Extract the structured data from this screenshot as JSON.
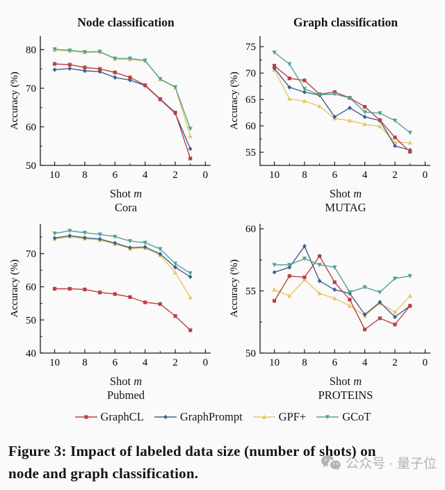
{
  "figure": {
    "column_titles": [
      "Node classification",
      "Graph classification"
    ],
    "shot_label": {
      "prefix": "Shot ",
      "var": "m"
    },
    "legend": [
      {
        "label": "GraphCL",
        "color": "#bc3f44",
        "marker": "square"
      },
      {
        "label": "GraphPrompt",
        "color": "#3f5f8e",
        "marker": "diamond"
      },
      {
        "label": "GPF+",
        "color": "#e8c766",
        "marker": "triangle-up"
      },
      {
        "label": "GCoT",
        "color": "#52a38e",
        "marker": "triangle-down"
      }
    ],
    "caption": {
      "line1": "Figure 3: Impact of labeled data size (number of shots) on",
      "line2": "node and graph classification."
    },
    "watermark": {
      "icon": "wechat-icon",
      "text": "公众号 · 量子位"
    }
  },
  "chart_data": [
    {
      "type": "line",
      "title": "Node classification",
      "subtitle": "Cora",
      "xlabel": "Shot m",
      "ylabel": "Accuracy (%)",
      "x": [
        10,
        9,
        8,
        7,
        6,
        5,
        4,
        3,
        2,
        1
      ],
      "x_ticks": [
        10,
        8,
        6,
        4,
        2,
        0
      ],
      "x_minor": [
        9,
        7,
        5,
        3,
        1
      ],
      "x_reversed": true,
      "ylim": [
        50,
        83.5
      ],
      "y_ticks": [
        50,
        60,
        70,
        80
      ],
      "y_minor": [
        55,
        65,
        75
      ],
      "series": [
        {
          "name": "GraphCL",
          "values": [
            76.3,
            76.1,
            75.4,
            75.0,
            74.1,
            72.8,
            70.8,
            67.2,
            63.7,
            51.8
          ]
        },
        {
          "name": "GraphPrompt",
          "values": [
            74.8,
            75.1,
            74.5,
            74.3,
            72.8,
            72.1,
            70.7,
            67.1,
            63.5,
            54.3
          ]
        },
        {
          "name": "GPF+",
          "values": [
            79.9,
            79.7,
            79.3,
            79.4,
            77.6,
            77.5,
            77.1,
            72.3,
            70.2,
            57.6
          ]
        },
        {
          "name": "GCoT",
          "values": [
            80.1,
            79.8,
            79.4,
            79.5,
            77.7,
            77.7,
            77.2,
            72.4,
            70.3,
            59.5
          ]
        }
      ]
    },
    {
      "type": "line",
      "title": "Graph classification",
      "subtitle": "MUTAG",
      "xlabel": "Shot m",
      "ylabel": "Accuracy (%)",
      "x": [
        10,
        9,
        8,
        7,
        6,
        5,
        4,
        3,
        2,
        1
      ],
      "x_ticks": [
        10,
        8,
        6,
        4,
        2,
        0
      ],
      "x_minor": [
        9,
        7,
        5,
        3,
        1
      ],
      "x_reversed": true,
      "ylim": [
        52.5,
        77
      ],
      "y_ticks": [
        55,
        60,
        65,
        70,
        75
      ],
      "y_minor": [
        57.5,
        62.5,
        67.5,
        72.5
      ],
      "series": [
        {
          "name": "GraphCL",
          "values": [
            71.4,
            69.0,
            68.6,
            66.0,
            66.4,
            65.3,
            63.6,
            61.1,
            57.8,
            55.1
          ]
        },
        {
          "name": "GraphPrompt",
          "values": [
            70.9,
            67.3,
            66.4,
            65.8,
            61.7,
            63.4,
            61.7,
            61.0,
            56.2,
            55.4
          ]
        },
        {
          "name": "GPF+",
          "values": [
            70.6,
            65.1,
            64.7,
            63.7,
            61.4,
            61.0,
            60.3,
            59.9,
            56.9,
            56.8
          ]
        },
        {
          "name": "GCoT",
          "values": [
            73.9,
            71.7,
            67.0,
            65.9,
            66.0,
            65.3,
            62.6,
            62.4,
            61.0,
            58.7
          ]
        }
      ]
    },
    {
      "type": "line",
      "title": null,
      "subtitle": "Pubmed",
      "xlabel": "Shot m",
      "ylabel": "Accuracy (%)",
      "x": [
        10,
        9,
        8,
        7,
        6,
        5,
        4,
        3,
        2,
        1
      ],
      "x_ticks": [
        10,
        8,
        6,
        4,
        2,
        0
      ],
      "x_minor": [
        9,
        7,
        5,
        3,
        1
      ],
      "x_reversed": true,
      "ylim": [
        40,
        79
      ],
      "y_ticks": [
        40,
        50,
        60,
        70
      ],
      "y_minor": [
        45,
        55,
        65,
        75
      ],
      "series": [
        {
          "name": "GraphCL",
          "values": [
            59.4,
            59.4,
            59.2,
            58.3,
            57.8,
            56.9,
            55.3,
            54.8,
            51.2,
            46.9
          ]
        },
        {
          "name": "GraphPrompt",
          "values": [
            74.7,
            75.4,
            74.8,
            74.4,
            73.2,
            71.8,
            72.0,
            69.9,
            65.9,
            63.0
          ]
        },
        {
          "name": "GPF+",
          "values": [
            74.4,
            75.1,
            74.5,
            74.1,
            72.9,
            71.5,
            71.7,
            69.5,
            64.3,
            56.8
          ]
        },
        {
          "name": "GCoT",
          "values": [
            76.1,
            76.9,
            76.3,
            75.8,
            75.1,
            73.8,
            73.3,
            71.4,
            67.0,
            64.1
          ]
        }
      ]
    },
    {
      "type": "line",
      "title": null,
      "subtitle": "PROTEINS",
      "xlabel": "Shot m",
      "ylabel": "Accuracy (%)",
      "x": [
        10,
        9,
        8,
        7,
        6,
        5,
        4,
        3,
        2,
        1
      ],
      "x_ticks": [
        10,
        8,
        6,
        4,
        2,
        0
      ],
      "x_minor": [
        9,
        7,
        5,
        3,
        1
      ],
      "x_reversed": true,
      "ylim": [
        50,
        60.4
      ],
      "y_ticks": [
        50,
        55,
        60
      ],
      "y_minor": [
        52.5,
        57.5
      ],
      "series": [
        {
          "name": "GraphCL",
          "values": [
            54.2,
            56.2,
            56.1,
            57.8,
            55.7,
            54.3,
            51.9,
            52.8,
            52.3,
            53.8
          ]
        },
        {
          "name": "GraphPrompt",
          "values": [
            56.5,
            56.9,
            58.6,
            55.8,
            55.1,
            54.8,
            53.1,
            54.1,
            52.9,
            53.8
          ]
        },
        {
          "name": "GPF+",
          "values": [
            55.1,
            54.6,
            55.9,
            54.8,
            54.4,
            53.8,
            53.0,
            54.0,
            53.3,
            54.6
          ]
        },
        {
          "name": "GCoT",
          "values": [
            57.1,
            57.1,
            57.6,
            57.1,
            56.9,
            54.9,
            55.3,
            54.9,
            56.0,
            56.2
          ]
        }
      ]
    }
  ]
}
